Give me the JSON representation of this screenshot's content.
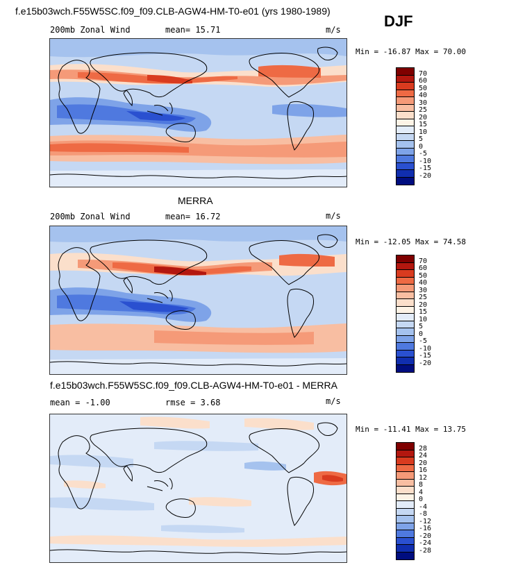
{
  "header": {
    "case_title": "f.e15b03wch.F55W5SC.f09_f09.CLB-AGW4-HM-T0-e01 (yrs 1980-1989)",
    "season": "DJF"
  },
  "panels": [
    {
      "title": "",
      "variable": "200mb Zonal Wind",
      "stat_text": "mean=  15.71",
      "units": "m/s",
      "minmax": "Min = -16.87 Max =  70.00",
      "levels": [
        "70",
        "60",
        "50",
        "40",
        "30",
        "25",
        "20",
        "15",
        "10",
        "5",
        "0",
        "-5",
        "-10",
        "-15",
        "-20"
      ]
    },
    {
      "title": "MERRA",
      "variable": "200mb Zonal Wind",
      "stat_text": "mean=  16.72",
      "units": "m/s",
      "minmax": "Min = -12.05 Max =  74.58",
      "levels": [
        "70",
        "60",
        "50",
        "40",
        "30",
        "25",
        "20",
        "15",
        "10",
        "5",
        "0",
        "-5",
        "-10",
        "-15",
        "-20"
      ]
    },
    {
      "title": "f.e15b03wch.F55W5SC.f09_f09.CLB-AGW4-HM-T0-e01 - MERRA",
      "variable": "mean =  -1.00",
      "stat_text": "rmse =   3.68",
      "units": "m/s",
      "minmax": "Min = -11.41 Max =  13.75",
      "levels": [
        "28",
        "24",
        "20",
        "16",
        "12",
        "8",
        "4",
        "0",
        "-4",
        "-8",
        "-12",
        "-16",
        "-20",
        "-24",
        "-28"
      ]
    }
  ],
  "colors": {
    "scale": [
      "#7f0000",
      "#b3170f",
      "#d93b1f",
      "#ee6a44",
      "#f59a78",
      "#f8bea2",
      "#fbdfcb",
      "#fdf3e6",
      "#e3ecf9",
      "#c5d8f3",
      "#a5c2ee",
      "#7ea3e8",
      "#4f79df",
      "#2a50d0",
      "#102eaf",
      "#000d7f"
    ],
    "land": "#000000"
  }
}
